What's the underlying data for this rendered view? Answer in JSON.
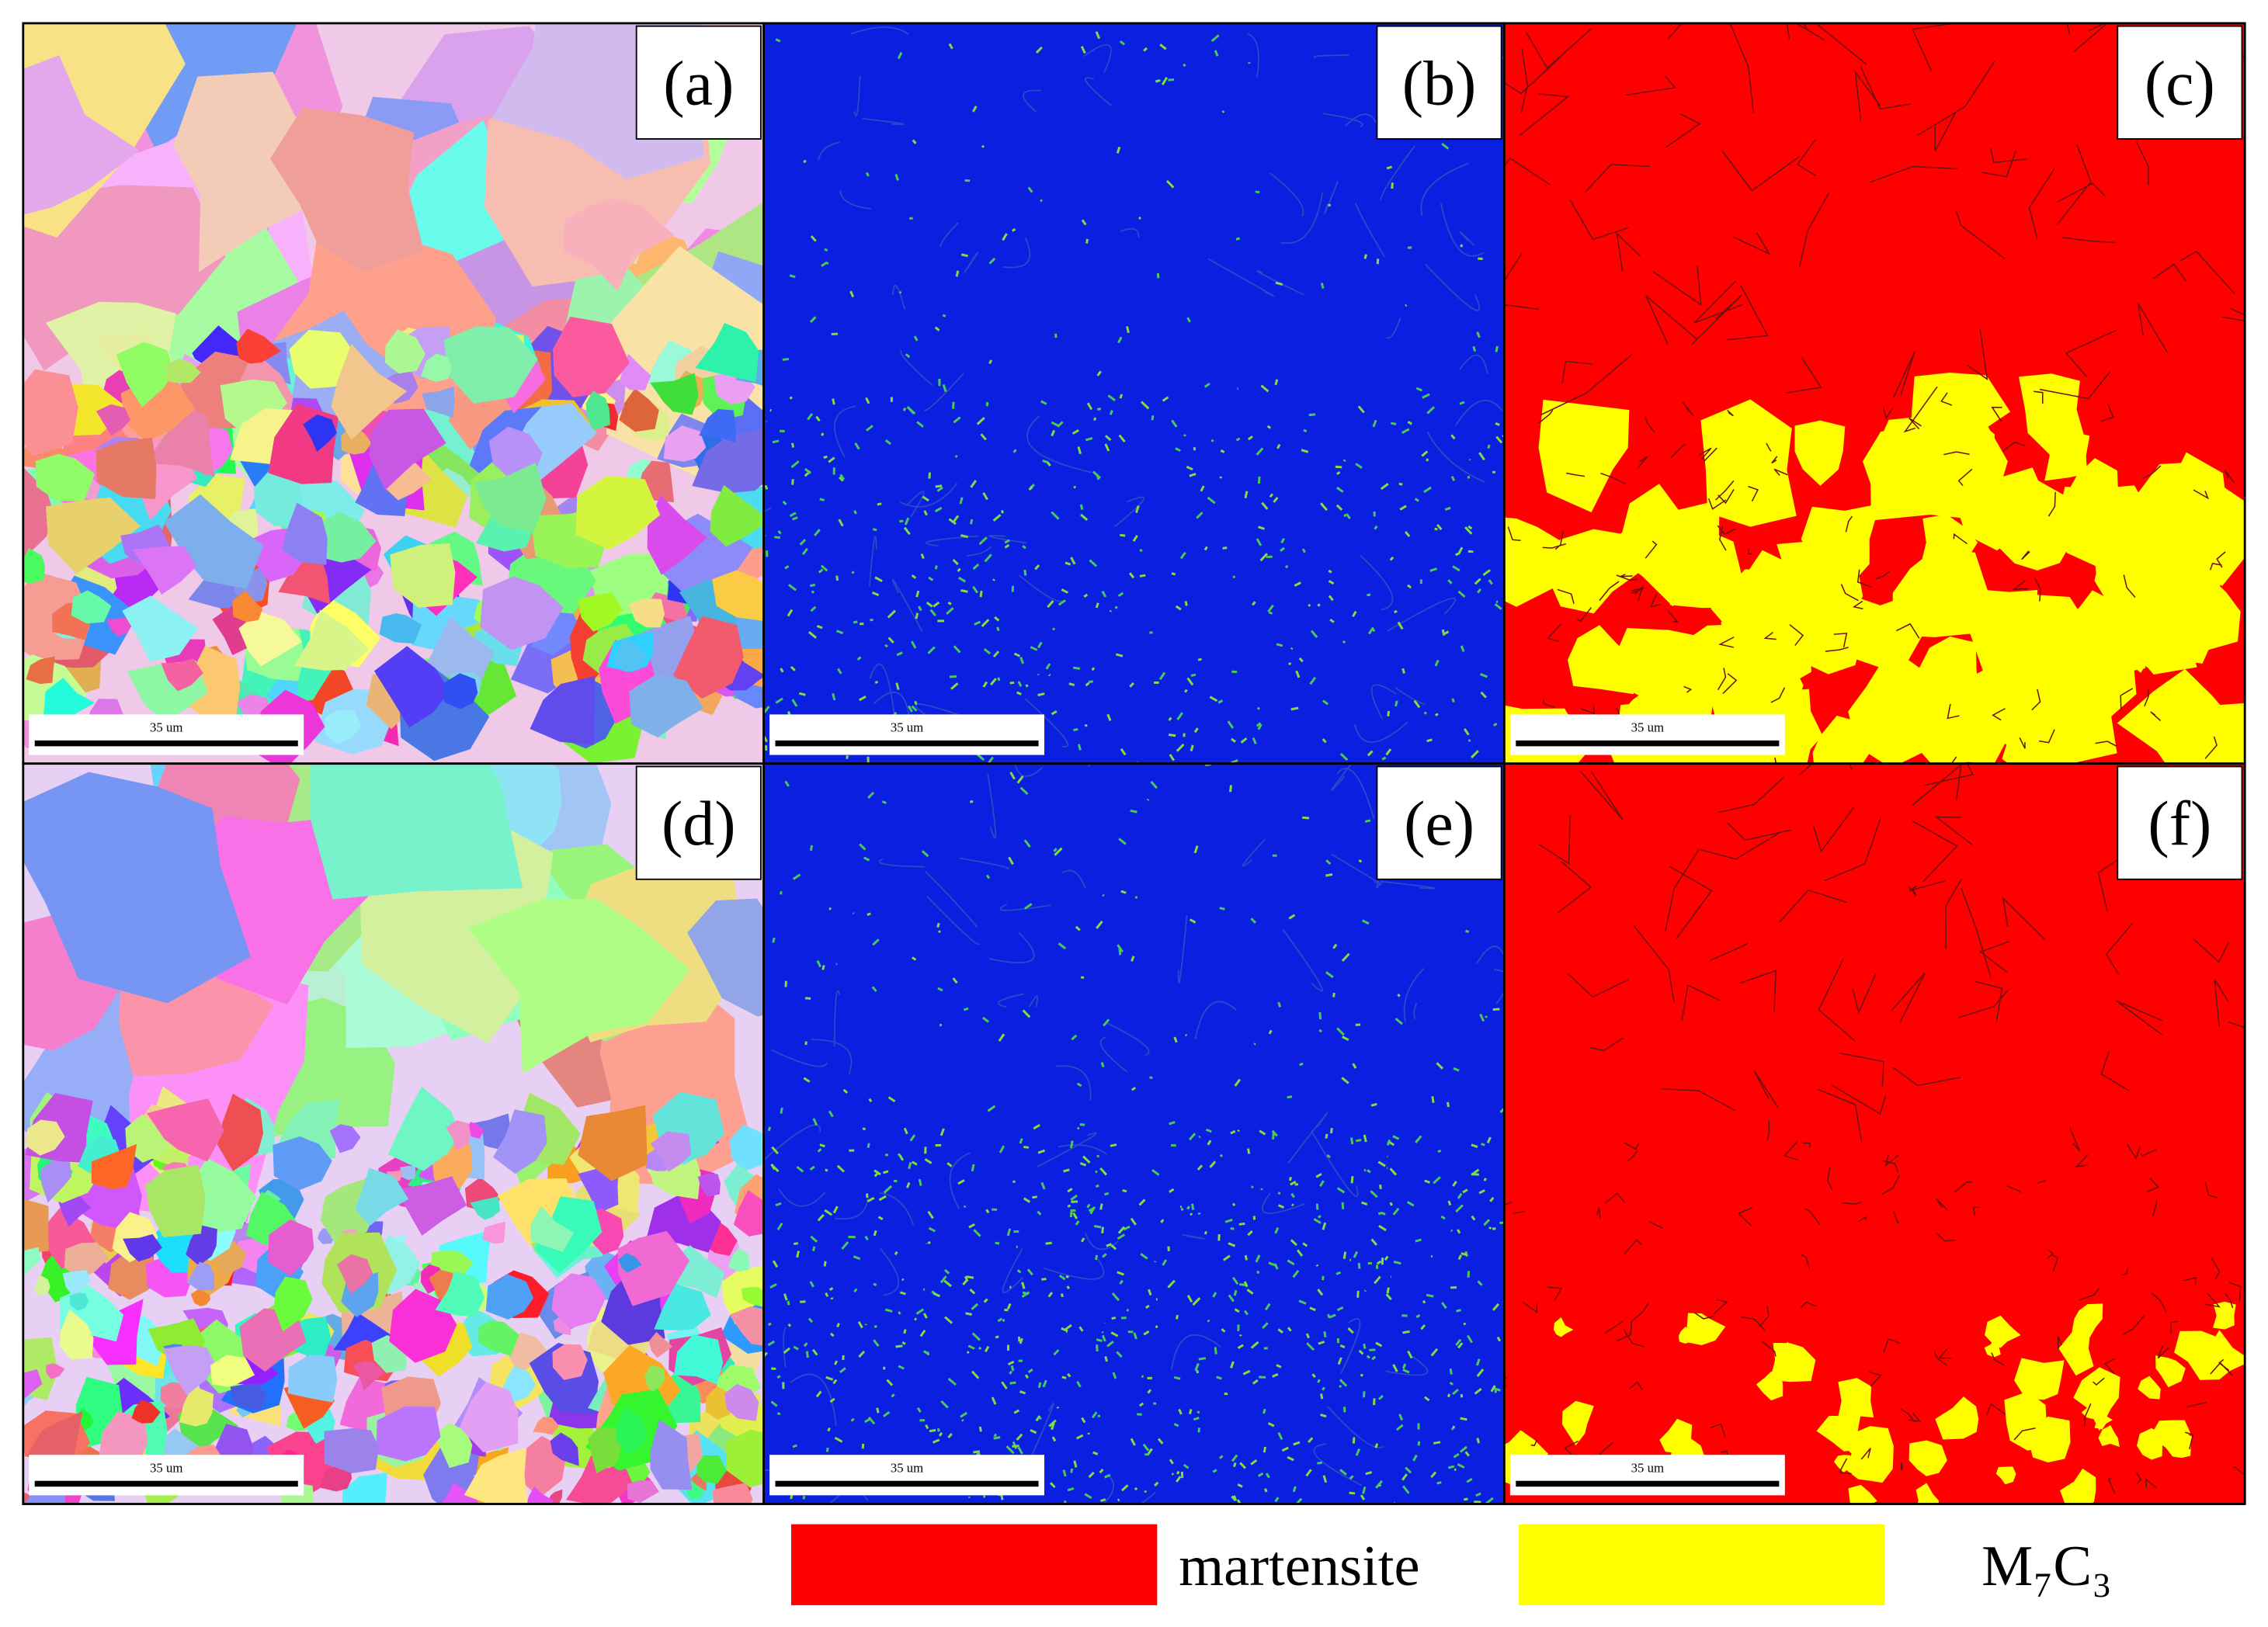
{
  "panels": [
    {
      "label": "(a)",
      "scale_bar": "35 um"
    },
    {
      "label": "(b)",
      "scale_bar": "35 um"
    },
    {
      "label": "(c)",
      "scale_bar": "35 um"
    },
    {
      "label": "(d)",
      "scale_bar": "35 um"
    },
    {
      "label": "(e)",
      "scale_bar": "35 um"
    },
    {
      "label": "(f)",
      "scale_bar": "35 um"
    }
  ],
  "legend": [
    {
      "label": "martensite",
      "color": "#ff0000"
    },
    {
      "label": "M₇C₃",
      "color": "#ffff00"
    }
  ]
}
